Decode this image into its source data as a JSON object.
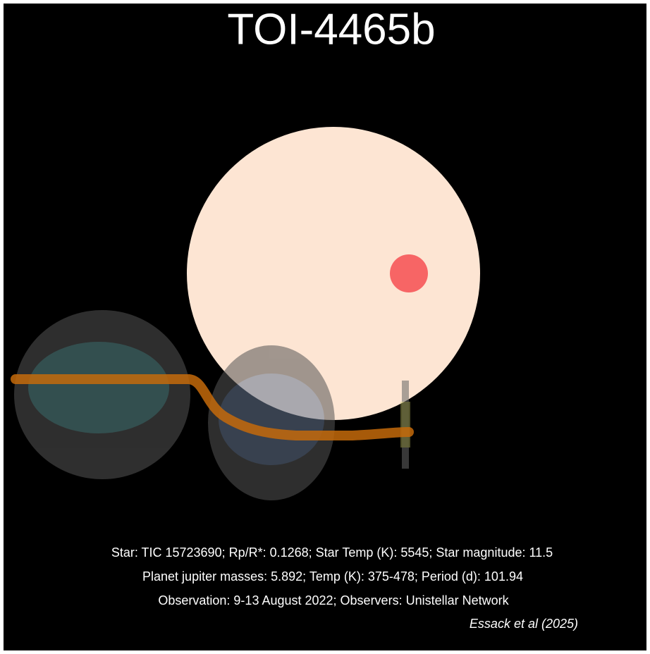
{
  "header": {
    "title": "TOI-4465b"
  },
  "caption": {
    "lines": [
      "Star: TIC 15723690; Rp/R*: 0.1268; Star Temp (K): 5545; Star magnitude: 11.5",
      "Planet jupiter masses: 5.892; Temp (K): 375-478; Period (d): 101.94",
      "Observation: 9-13 August 2022; Observers: Unistellar Network"
    ],
    "citation": "Essack et al (2025)"
  }
}
